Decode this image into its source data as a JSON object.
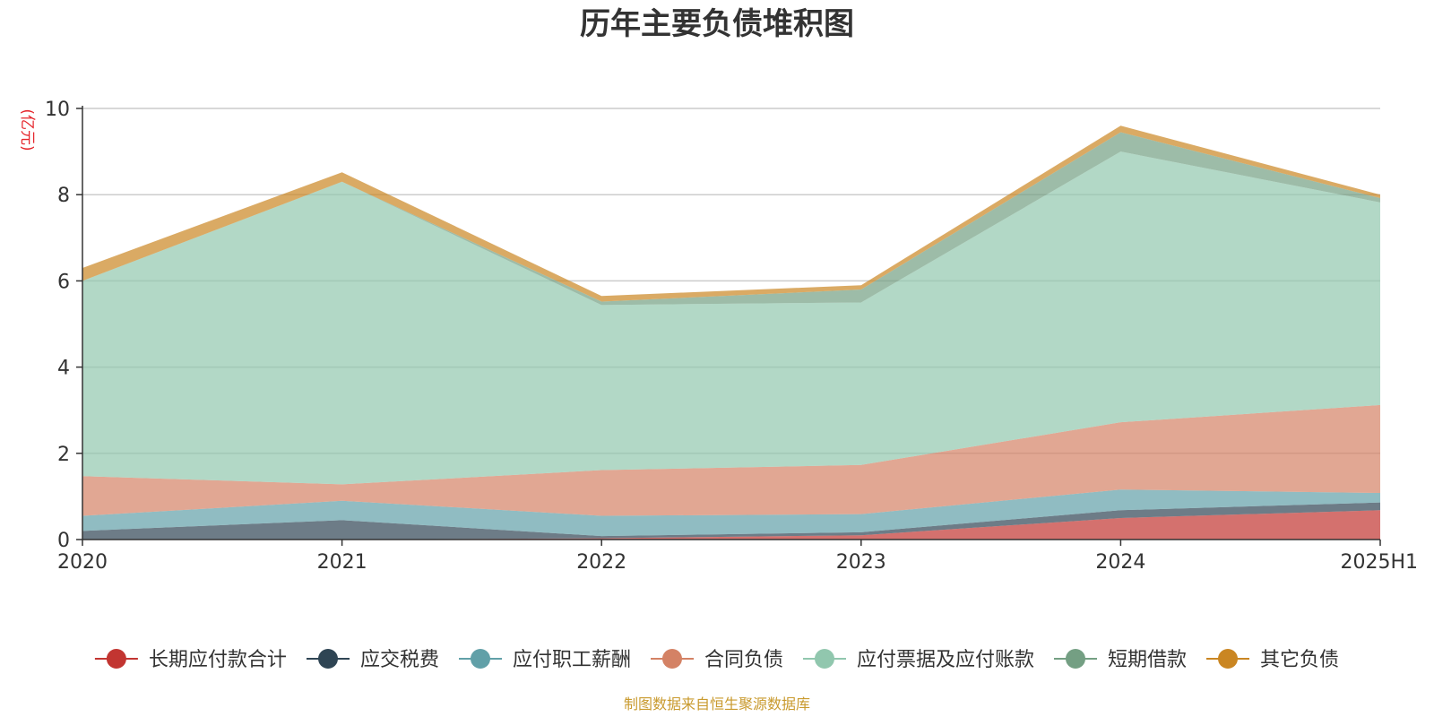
{
  "chart_data": {
    "type": "area",
    "title": "历年主要负债堆积图",
    "ylabel": "亿元",
    "y_unit_label": "(亿元)",
    "categories": [
      "2020",
      "2021",
      "2022",
      "2023",
      "2024",
      "2025H1"
    ],
    "ylim": [
      0,
      10
    ],
    "yticks": [
      "0",
      "2",
      "4",
      "6",
      "8",
      "10"
    ],
    "grid": true,
    "stacked": true,
    "legend_position": "bottom",
    "series": [
      {
        "name": "长期应付款合计",
        "color": "#c23531",
        "values": [
          0.0,
          0.0,
          0.03,
          0.1,
          0.5,
          0.68
        ]
      },
      {
        "name": "应交税费",
        "color": "#2f4554",
        "values": [
          0.2,
          0.45,
          0.05,
          0.07,
          0.18,
          0.18
        ]
      },
      {
        "name": "应付职工薪酬",
        "color": "#61a0a8",
        "values": [
          0.35,
          0.45,
          0.47,
          0.42,
          0.48,
          0.22
        ]
      },
      {
        "name": "合同负债",
        "color": "#d48265",
        "values": [
          0.92,
          0.38,
          1.06,
          1.14,
          1.56,
          2.04
        ]
      },
      {
        "name": "应付票据及应付账款",
        "color": "#91c7ae",
        "values": [
          4.53,
          7.02,
          3.83,
          3.77,
          6.28,
          4.7
        ]
      },
      {
        "name": "短期借款",
        "color": "#749f83",
        "values": [
          0.0,
          0.0,
          0.08,
          0.3,
          0.45,
          0.1
        ]
      },
      {
        "name": "其它负债",
        "color": "#ca8622",
        "values": [
          0.3,
          0.22,
          0.13,
          0.1,
          0.15,
          0.08
        ]
      }
    ],
    "source_note": "制图数据来自恒生聚源数据库"
  }
}
